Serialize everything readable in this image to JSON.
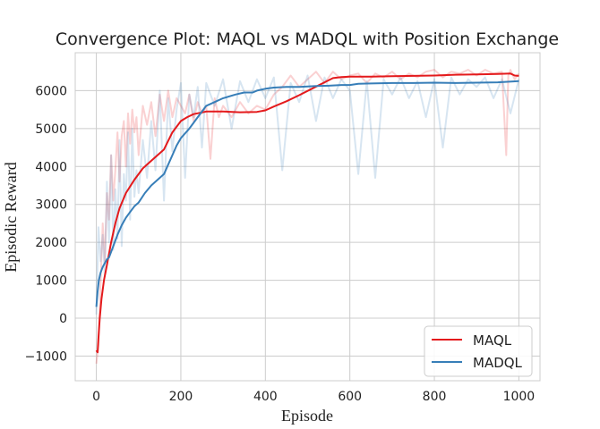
{
  "chart_data": {
    "type": "line",
    "title": "Convergence Plot: MAQL vs MADQL with Position Exchange",
    "xlabel": "Episode",
    "ylabel": "Episodic Reward",
    "xlim": [
      -50,
      1050
    ],
    "ylim": [
      -1650,
      7000
    ],
    "xticks": [
      0,
      200,
      400,
      600,
      800,
      1000
    ],
    "yticks": [
      -1000,
      0,
      1000,
      2000,
      3000,
      4000,
      5000,
      6000
    ],
    "xtick_labels": [
      "0",
      "200",
      "400",
      "600",
      "800",
      "1000"
    ],
    "ytick_labels": [
      "−1000",
      "0",
      "1000",
      "2000",
      "3000",
      "4000",
      "5000",
      "6000"
    ],
    "grid": true,
    "legend_position": "lower-right",
    "series": [
      {
        "name": "MAQL",
        "color": "#e41a1c",
        "smoothed": {
          "x": [
            0,
            3,
            5,
            8,
            12,
            18,
            25,
            35,
            45,
            55,
            70,
            90,
            110,
            130,
            160,
            180,
            200,
            215,
            230,
            260,
            300,
            340,
            380,
            400,
            420,
            450,
            480,
            510,
            540,
            560,
            580,
            600,
            650,
            700,
            750,
            800,
            850,
            900,
            950,
            980,
            990,
            1000
          ],
          "y": [
            -850,
            -900,
            -500,
            0,
            500,
            1000,
            1400,
            2000,
            2500,
            2900,
            3300,
            3650,
            3950,
            4150,
            4450,
            4900,
            5200,
            5300,
            5380,
            5450,
            5450,
            5430,
            5440,
            5480,
            5580,
            5720,
            5880,
            6050,
            6220,
            6330,
            6360,
            6370,
            6370,
            6380,
            6390,
            6400,
            6420,
            6430,
            6440,
            6450,
            6400,
            6390
          ]
        },
        "raw": {
          "x": [
            0,
            5,
            10,
            15,
            20,
            25,
            30,
            35,
            40,
            45,
            50,
            55,
            60,
            65,
            70,
            75,
            80,
            85,
            90,
            95,
            100,
            110,
            120,
            130,
            140,
            150,
            160,
            170,
            180,
            190,
            200,
            210,
            220,
            230,
            240,
            250,
            260,
            270,
            280,
            290,
            300,
            320,
            340,
            360,
            380,
            400,
            420,
            440,
            460,
            480,
            500,
            520,
            540,
            560,
            580,
            600,
            620,
            640,
            660,
            680,
            700,
            720,
            740,
            760,
            780,
            800,
            820,
            840,
            860,
            880,
            900,
            920,
            940,
            960,
            970,
            975,
            980,
            990,
            1000
          ],
          "y": [
            -1200,
            -700,
            900,
            2500,
            1500,
            3300,
            2600,
            4300,
            3100,
            3900,
            4900,
            3600,
            4800,
            5200,
            4000,
            5400,
            4600,
            5500,
            4900,
            5300,
            4300,
            5600,
            5100,
            5700,
            4800,
            5900,
            5200,
            6000,
            5300,
            5800,
            5600,
            5400,
            5900,
            5200,
            5700,
            5400,
            5600,
            4200,
            5800,
            5300,
            5600,
            5300,
            5700,
            5400,
            5600,
            5500,
            5900,
            6100,
            6400,
            6100,
            6300,
            6500,
            6200,
            6500,
            6300,
            6400,
            6450,
            6200,
            6450,
            6350,
            6500,
            6300,
            6450,
            6350,
            6500,
            6550,
            6350,
            6500,
            6450,
            6550,
            6400,
            6550,
            6450,
            6500,
            4300,
            6400,
            6550,
            6300,
            6450
          ]
        }
      },
      {
        "name": "MADQL",
        "color": "#377eb8",
        "smoothed": {
          "x": [
            0,
            3,
            6,
            10,
            15,
            20,
            25,
            30,
            40,
            50,
            60,
            70,
            80,
            90,
            100,
            115,
            130,
            145,
            160,
            170,
            180,
            190,
            200,
            220,
            240,
            260,
            280,
            300,
            330,
            350,
            370,
            380,
            400,
            420,
            450,
            480,
            500,
            520,
            550,
            580,
            600,
            620,
            650,
            700,
            750,
            800,
            850,
            900,
            950,
            1000
          ],
          "y": [
            300,
            700,
            1000,
            1200,
            1350,
            1450,
            1550,
            1600,
            1900,
            2200,
            2450,
            2650,
            2800,
            2950,
            3050,
            3300,
            3500,
            3650,
            3800,
            4050,
            4300,
            4550,
            4750,
            5000,
            5300,
            5600,
            5700,
            5800,
            5900,
            5950,
            5950,
            6000,
            6050,
            6080,
            6100,
            6100,
            6110,
            6120,
            6130,
            6150,
            6150,
            6180,
            6190,
            6200,
            6200,
            6210,
            6200,
            6210,
            6220,
            6250
          ]
        },
        "raw": {
          "x": [
            0,
            5,
            10,
            15,
            20,
            25,
            30,
            35,
            40,
            45,
            50,
            55,
            60,
            65,
            70,
            75,
            80,
            85,
            90,
            95,
            100,
            110,
            120,
            130,
            140,
            150,
            160,
            170,
            180,
            190,
            200,
            210,
            220,
            230,
            240,
            250,
            260,
            280,
            300,
            320,
            340,
            360,
            380,
            400,
            420,
            440,
            460,
            480,
            500,
            520,
            540,
            560,
            580,
            600,
            620,
            640,
            660,
            680,
            700,
            720,
            740,
            760,
            780,
            800,
            820,
            840,
            860,
            880,
            900,
            920,
            940,
            960,
            980,
            1000
          ],
          "y": [
            100,
            2400,
            1500,
            2200,
            1100,
            3600,
            2000,
            4300,
            1800,
            3400,
            2100,
            4700,
            1900,
            3800,
            3100,
            4900,
            2600,
            5000,
            3200,
            3900,
            3300,
            4700,
            3700,
            5200,
            3900,
            6000,
            3100,
            5800,
            4400,
            5500,
            6200,
            3700,
            5900,
            5300,
            6100,
            4500,
            6200,
            5600,
            6300,
            5000,
            6250,
            5700,
            6300,
            5800,
            6350,
            3900,
            6200,
            5700,
            6400,
            5200,
            6350,
            5800,
            6300,
            6000,
            3800,
            6250,
            3700,
            6300,
            5900,
            6350,
            5800,
            6250,
            5300,
            6300,
            4500,
            6350,
            5900,
            6300,
            6100,
            6350,
            5800,
            6300,
            5400,
            6300
          ]
        }
      }
    ]
  }
}
